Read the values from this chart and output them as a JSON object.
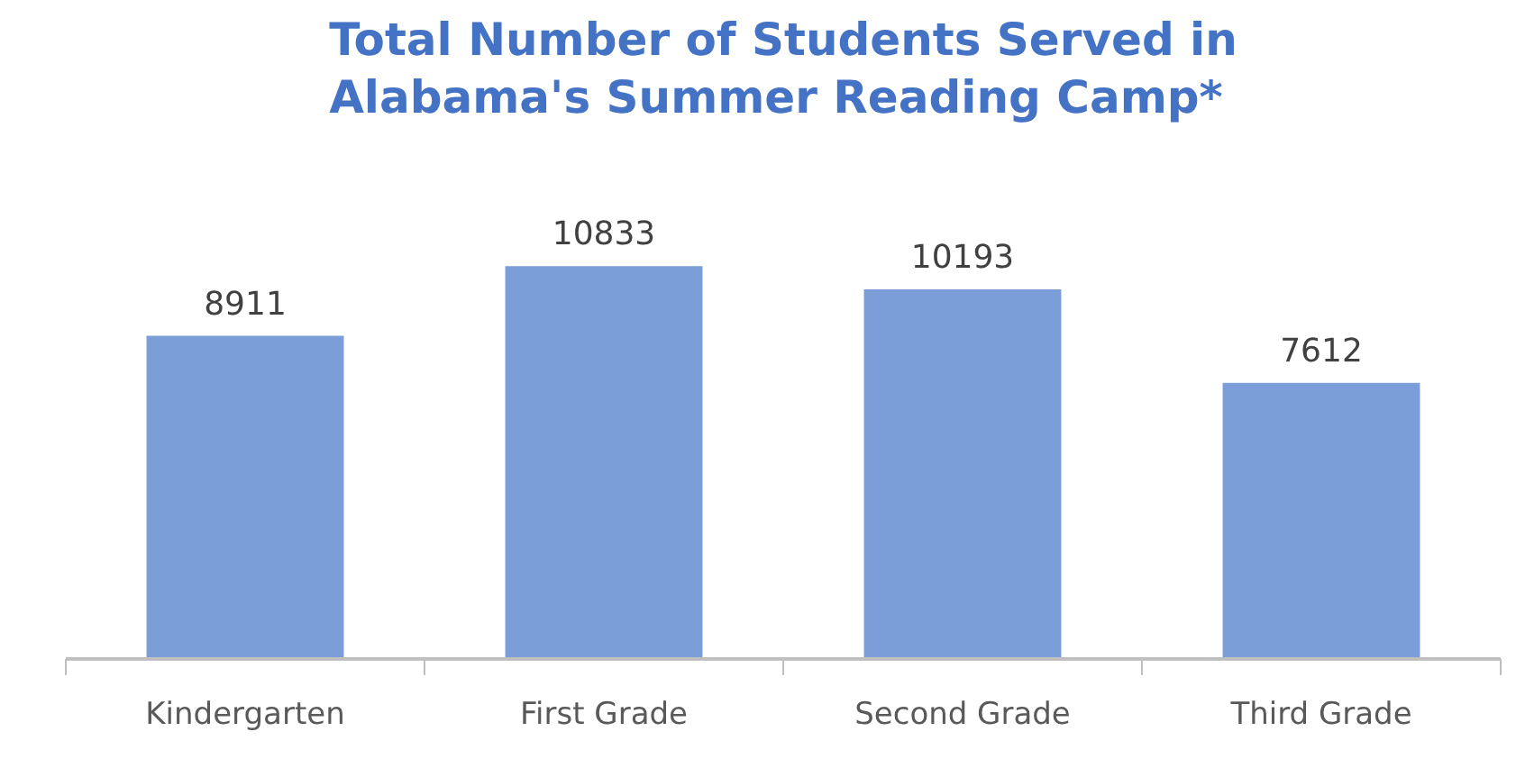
{
  "chart_data": {
    "type": "bar",
    "title": "Total Number of Students Served in Alabama's Summer Reading Camp*",
    "categories": [
      "Kindergarten",
      "First Grade",
      "Second Grade",
      "Third Grade"
    ],
    "values": [
      8911,
      10833,
      10193,
      7612
    ],
    "color": "#7b9ed8",
    "data_labels": true
  }
}
